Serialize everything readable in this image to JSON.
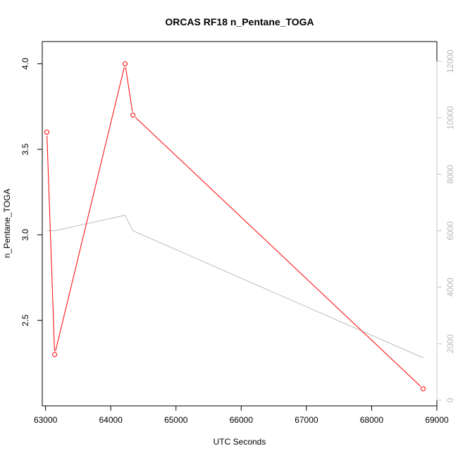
{
  "chart_data": {
    "type": "line",
    "title": "ORCAS RF18 n_Pentane_TOGA",
    "xlabel": "UTC Seconds",
    "ylabel": "n_Pentane_TOGA",
    "xlim": [
      62950,
      69000
    ],
    "ylim": [
      2.0,
      4.13
    ],
    "y2lim": [
      -200,
      12700
    ],
    "x_ticks": [
      63000,
      64000,
      65000,
      66000,
      67000,
      68000,
      69000
    ],
    "y_ticks": [
      2.5,
      3.0,
      3.5,
      4.0
    ],
    "y2_ticks": [
      0,
      2000,
      4000,
      6000,
      8000,
      10000,
      12000
    ],
    "series": [
      {
        "color": "#ff0000",
        "markers": "open-circle",
        "axis": "left",
        "x": [
          63020,
          63140,
          64220,
          64340,
          68790
        ],
        "y": [
          3.6,
          2.3,
          4.0,
          3.7,
          2.1
        ]
      },
      {
        "color": "#bebebe",
        "markers": "none",
        "axis": "right",
        "x": [
          63020,
          63140,
          64220,
          64340,
          68790
        ],
        "y": [
          6000,
          6000,
          6550,
          6000,
          1500
        ]
      }
    ]
  }
}
